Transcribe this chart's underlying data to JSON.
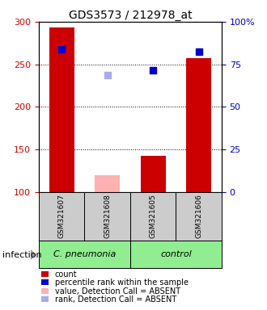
{
  "title": "GDS3573 / 212978_at",
  "samples": [
    "GSM321607",
    "GSM321608",
    "GSM321605",
    "GSM321606"
  ],
  "bar_colors_present": "#cc0000",
  "bar_colors_absent": "#ffb0b0",
  "dot_colors_present": "#0000cc",
  "dot_colors_absent": "#aaaaee",
  "bar_values": [
    293,
    null,
    143,
    257
  ],
  "bar_values_absent": [
    null,
    120,
    null,
    null
  ],
  "dot_values": [
    268,
    null,
    243,
    265
  ],
  "dot_values_absent": [
    null,
    237,
    null,
    null
  ],
  "ylim_left": [
    100,
    300
  ],
  "ylim_right": [
    0,
    100
  ],
  "yticks_left": [
    100,
    150,
    200,
    250,
    300
  ],
  "yticks_right": [
    0,
    25,
    50,
    75,
    100
  ],
  "yticklabels_right": [
    "0",
    "25",
    "50",
    "75",
    "100%"
  ],
  "ylabel_left_color": "#cc0000",
  "ylabel_right_color": "#0000cc",
  "bar_width": 0.55,
  "legend_items": [
    {
      "label": "count",
      "color": "#cc0000"
    },
    {
      "label": "percentile rank within the sample",
      "color": "#0000cc"
    },
    {
      "label": "value, Detection Call = ABSENT",
      "color": "#ffb0b0"
    },
    {
      "label": "rank, Detection Call = ABSENT",
      "color": "#aaaaee"
    }
  ],
  "dot_size": 28,
  "group_spans": [
    {
      "label": "C. pneumonia",
      "start": 0,
      "end": 1,
      "color": "#90ee90"
    },
    {
      "label": "control",
      "start": 2,
      "end": 3,
      "color": "#90ee90"
    }
  ]
}
